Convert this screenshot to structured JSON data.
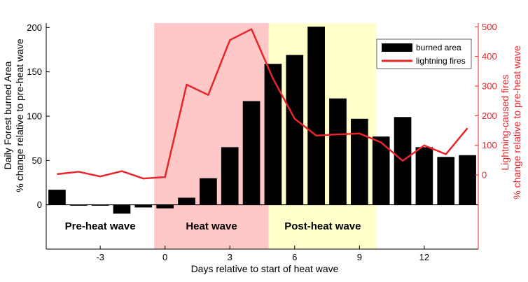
{
  "chart_data": {
    "type": "bar+line",
    "title": "",
    "xlabel": "Days relative to start of heat wave",
    "ylabel_left": [
      "Daily Forest burned Area",
      "% change relative to pre-heat wave"
    ],
    "ylabel_right": [
      "Lightning-caused fires",
      "% change relative to pre-heat wave"
    ],
    "xlim": [
      -5.5,
      14.5
    ],
    "ylim_left": [
      -50,
      205
    ],
    "ylim_right": [
      -250,
      512.5
    ],
    "x_ticks": [
      -3,
      0,
      3,
      6,
      9,
      12
    ],
    "y_ticks_left": [
      0,
      50,
      100,
      150,
      200
    ],
    "y_ticks_right": [
      0,
      100,
      200,
      300,
      400,
      500
    ],
    "grid": false,
    "legend_position": "top-right",
    "regions": [
      {
        "label": "Pre-heat wave",
        "start": -5.5,
        "end": -0.5,
        "color": "#ffffff"
      },
      {
        "label": "Heat wave",
        "start": -0.5,
        "end": 4.8,
        "color": "#ffc8c8"
      },
      {
        "label": "Post-heat wave",
        "start": 4.8,
        "end": 9.8,
        "color": "#ffffcc"
      }
    ],
    "series": [
      {
        "name": "burned area",
        "type": "bar",
        "axis": "left",
        "color": "#000000",
        "x": [
          -5,
          -4,
          -3,
          -2,
          -1,
          0,
          1,
          2,
          3,
          4,
          5,
          6,
          7,
          8,
          9,
          10,
          11,
          12,
          13,
          14
        ],
        "values": [
          17,
          -1,
          -1,
          -10,
          -3,
          -4,
          8,
          30,
          65,
          117,
          159,
          169,
          201,
          120,
          97,
          77,
          99,
          65,
          54,
          56
        ]
      },
      {
        "name": "lightning fires",
        "type": "line",
        "axis": "right",
        "color": "#e8262a",
        "x": [
          -5,
          -4,
          -3,
          -2,
          -1,
          0,
          1,
          2,
          3,
          4,
          5,
          6,
          7,
          8,
          9,
          10,
          11,
          12,
          13,
          14
        ],
        "values": [
          3,
          11,
          -5,
          13,
          -12,
          -7,
          305,
          270,
          455,
          492,
          325,
          190,
          133,
          137,
          140,
          110,
          48,
          100,
          70,
          158
        ]
      }
    ]
  }
}
